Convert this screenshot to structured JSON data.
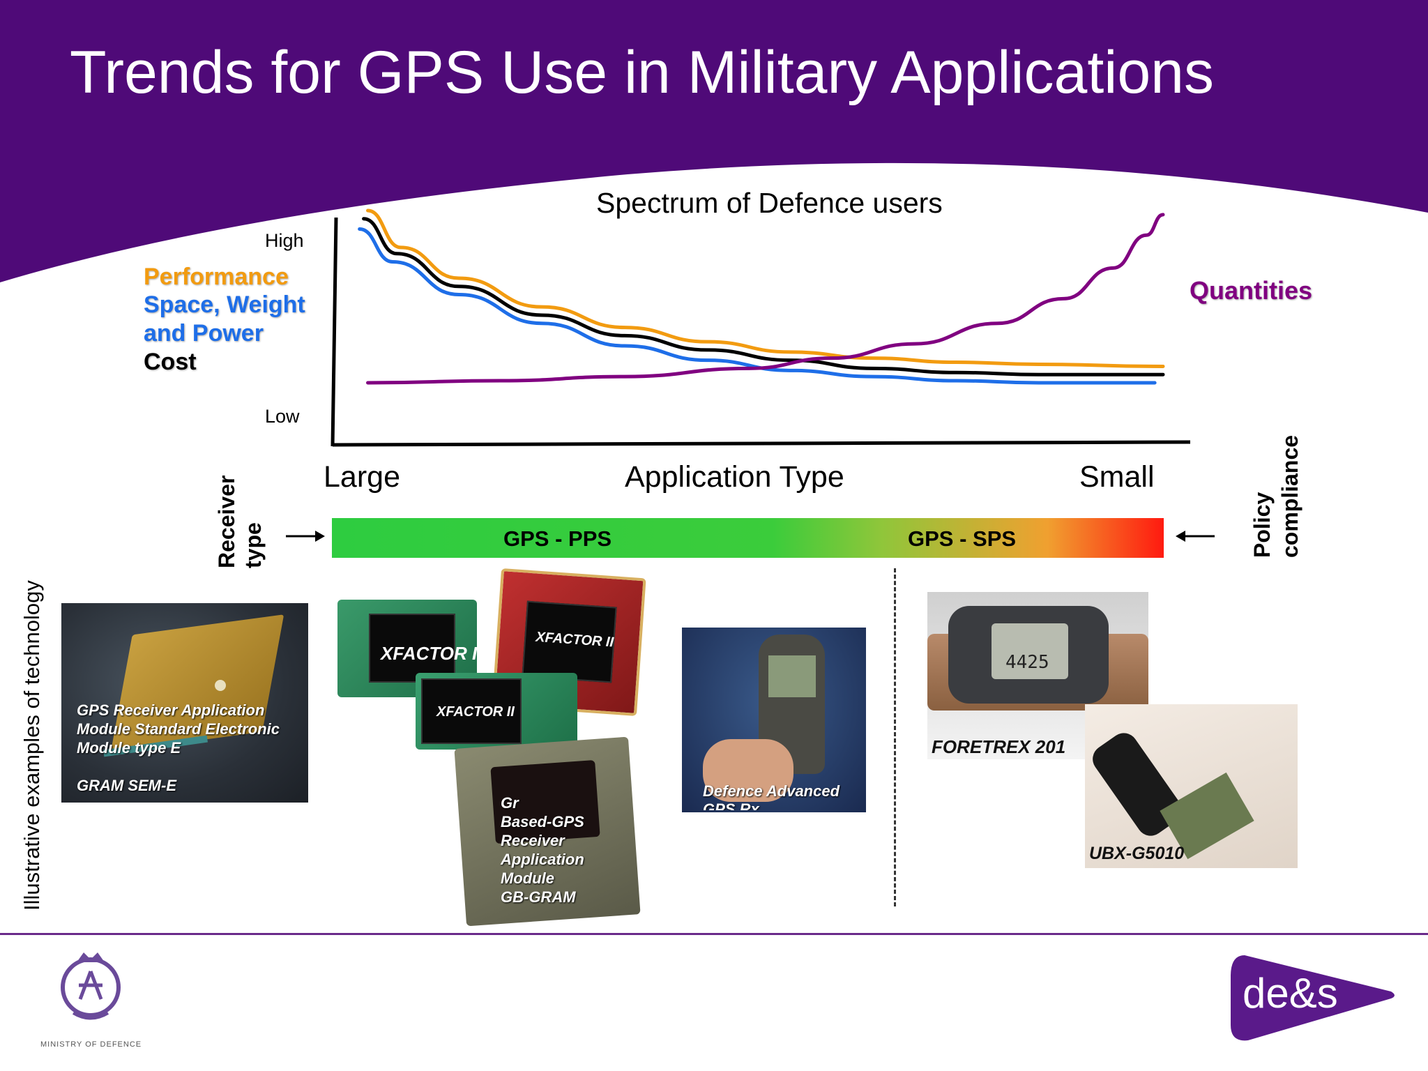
{
  "header": {
    "title": "Trends for GPS Use in Military Applications",
    "color": "#4f0a78"
  },
  "chart": {
    "title": "Spectrum of Defence users",
    "y_high": "High",
    "y_low": "Low",
    "x_label": "Application Type",
    "x_left": "Large",
    "x_right": "Small",
    "legend": {
      "performance": "Performance",
      "swp_line1": "Space, Weight",
      "swp_line2": "and Power",
      "cost": "Cost",
      "quantities": "Quantities"
    }
  },
  "chart_data": {
    "type": "line",
    "title": "Spectrum of Defence users",
    "xlabel": "Application Type",
    "x_categories": [
      "Large",
      "Small"
    ],
    "y_categories": [
      "Low",
      "High"
    ],
    "x_range": [
      0,
      1
    ],
    "y_range": [
      0,
      1
    ],
    "series": [
      {
        "name": "Performance",
        "color": "#f29b10",
        "x": [
          0.04,
          0.08,
          0.15,
          0.25,
          0.35,
          0.45,
          0.55,
          0.65,
          0.75,
          0.85,
          1.0
        ],
        "y": [
          1.0,
          0.82,
          0.67,
          0.53,
          0.43,
          0.36,
          0.31,
          0.28,
          0.26,
          0.25,
          0.24
        ]
      },
      {
        "name": "Space, Weight and Power",
        "color": "#1e6ee8",
        "x": [
          0.03,
          0.07,
          0.15,
          0.25,
          0.35,
          0.45,
          0.55,
          0.65,
          0.75,
          0.85,
          0.99
        ],
        "y": [
          0.91,
          0.75,
          0.59,
          0.45,
          0.34,
          0.27,
          0.22,
          0.19,
          0.17,
          0.16,
          0.16
        ]
      },
      {
        "name": "Cost",
        "color": "#000000",
        "x": [
          0.035,
          0.075,
          0.15,
          0.25,
          0.35,
          0.45,
          0.55,
          0.65,
          0.75,
          0.85,
          1.0
        ],
        "y": [
          0.96,
          0.79,
          0.63,
          0.49,
          0.39,
          0.32,
          0.27,
          0.23,
          0.21,
          0.2,
          0.2
        ]
      },
      {
        "name": "Quantities",
        "color": "#800080",
        "x": [
          0.04,
          0.2,
          0.35,
          0.5,
          0.6,
          0.7,
          0.8,
          0.88,
          0.94,
          0.98,
          1.0
        ],
        "y": [
          0.16,
          0.17,
          0.19,
          0.23,
          0.28,
          0.35,
          0.45,
          0.57,
          0.72,
          0.88,
          0.98
        ]
      }
    ]
  },
  "receiver": {
    "label_line1": "Receiver",
    "label_line2": "type",
    "pps": "GPS - PPS",
    "sps": "GPS - SPS",
    "policy_line1": "Policy",
    "policy_line2": "compliance"
  },
  "examples": {
    "side_label": "Illustrative examples of technology",
    "gram_sem_e": {
      "line1": "GPS Receiver Application",
      "line2": "Module Standard Electronic",
      "line3": "Module type E",
      "line4": "GRAM SEM-E"
    },
    "xfactor_label": "XFACTOR II",
    "gb_gram": {
      "line1": "Gr",
      "line2": "Based-GPS",
      "line3": "Receiver",
      "line4": "Application",
      "line5": "Module",
      "line6": "GB-GRAM"
    },
    "dagr": {
      "line1": "Defence Advanced",
      "line2": "GPS Rx"
    },
    "foretrex": "FORETREX 201",
    "watch_reading": "4425",
    "ubx": "UBX-G5010"
  },
  "footer": {
    "des_logo": "de&s",
    "mod_text": "MINISTRY OF DEFENCE"
  }
}
